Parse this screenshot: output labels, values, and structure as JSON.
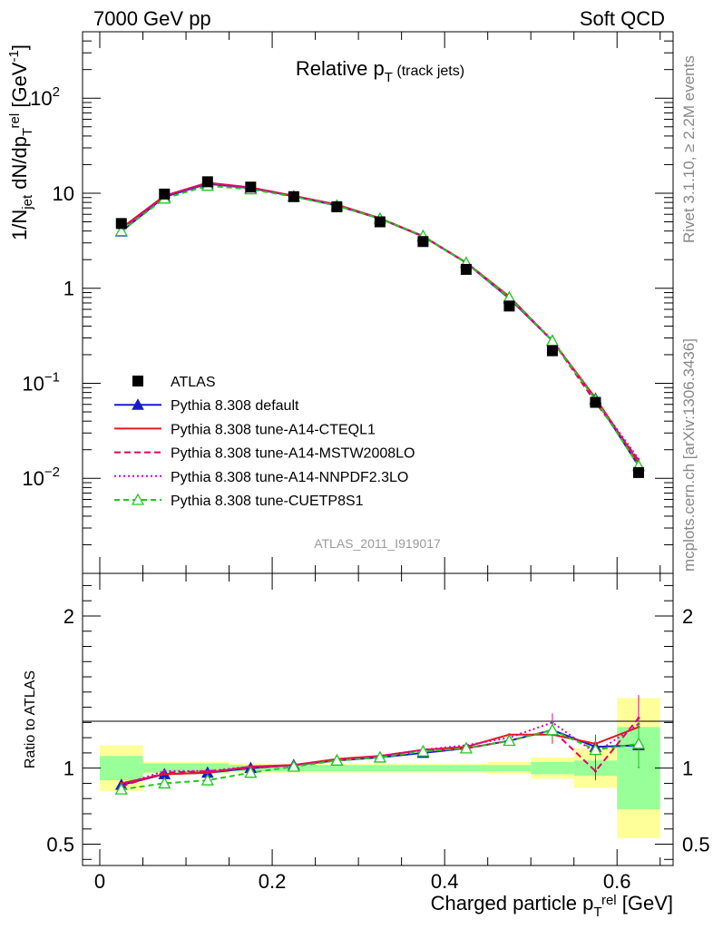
{
  "header": {
    "left": "7000 GeV pp",
    "right": "Soft QCD"
  },
  "side_labels": {
    "rivet": "Rivet 3.1.10, ≥ 2.2M events",
    "mcplots": "mcplots.cern.ch [arXiv:1306.3436]"
  },
  "chart_data": {
    "type": "line",
    "title": "Relative p_T (track jets)",
    "analysis_label": "ATLAS_2011_I919017",
    "xlabel": "Charged particle p_T^rel [GeV]",
    "ylabel_main": "1/N_jet dN/dp_T^rel [GeV^-1]",
    "ylabel_ratio": "Ratio to ATLAS",
    "x_range": [
      -0.02,
      0.665
    ],
    "y_range_main_log": [
      0.001,
      500
    ],
    "y_range_ratio": [
      0.36,
      2.28
    ],
    "x_ticks": [
      0,
      0.2,
      0.4,
      0.6
    ],
    "x_tick_labels": [
      "0",
      "0.2",
      "0.4",
      "0.6"
    ],
    "y_ticks_main": [
      {
        "value": 0.01,
        "base": "10",
        "exp": "−2"
      },
      {
        "value": 0.1,
        "base": "10",
        "exp": "−1"
      },
      {
        "value": 1,
        "base": "1",
        "exp": ""
      },
      {
        "value": 10,
        "base": "10",
        "exp": ""
      },
      {
        "value": 100,
        "base": "10",
        "exp": "2"
      }
    ],
    "y_ticks_ratio": [
      {
        "value": 0.5,
        "label": "0.5"
      },
      {
        "value": 1,
        "label": "1"
      },
      {
        "value": 2,
        "label": "2"
      }
    ],
    "x": [
      0.025,
      0.075,
      0.125,
      0.175,
      0.225,
      0.275,
      0.325,
      0.375,
      0.425,
      0.475,
      0.525,
      0.575,
      0.625
    ],
    "bin_edges": [
      0,
      0.05,
      0.1,
      0.15,
      0.2,
      0.25,
      0.3,
      0.35,
      0.4,
      0.45,
      0.5,
      0.55,
      0.6,
      0.65
    ],
    "data": {
      "name": "ATLAS",
      "values": [
        4.8,
        9.8,
        13.2,
        11.6,
        9.2,
        7.2,
        5.0,
        3.1,
        1.58,
        0.65,
        0.22,
        0.063,
        0.0115
      ],
      "color": "#000000"
    },
    "uncertainty_bands": {
      "green_half_width": [
        0.08,
        0.03,
        0.03,
        0.02,
        0.02,
        0.02,
        0.02,
        0.02,
        0.02,
        0.02,
        0.04,
        0.05,
        0.27
      ],
      "yellow_half_width": [
        0.15,
        0.04,
        0.04,
        0.03,
        0.03,
        0.03,
        0.03,
        0.03,
        0.03,
        0.04,
        0.07,
        0.13,
        0.46
      ],
      "green_color": "#99ff99",
      "yellow_color": "#ffff99"
    },
    "series": [
      {
        "name": "Pythia 8.308 default",
        "color": "#1a1acc",
        "dash": "",
        "marker": "triangle-filled",
        "values": [
          3.95,
          9.15,
          12.6,
          11.3,
          9.3,
          7.4,
          5.4,
          3.5,
          1.85,
          0.78,
          0.28,
          0.069,
          0.0135
        ],
        "ratio": [
          0.89,
          0.96,
          0.97,
          1.0,
          1.02,
          1.05,
          1.07,
          1.1,
          1.13,
          1.18,
          1.25,
          1.14,
          1.15
        ]
      },
      {
        "name": "Pythia 8.308 tune-A14-CTEQL1",
        "color": "#e41a1c",
        "dash": "",
        "marker": "none",
        "values": [
          4.3,
          9.4,
          12.9,
          11.5,
          9.4,
          7.6,
          5.45,
          3.55,
          1.87,
          0.82,
          0.28,
          0.07,
          0.0145
        ],
        "ratio": [
          0.9,
          0.96,
          0.97,
          1.01,
          1.02,
          1.06,
          1.08,
          1.12,
          1.14,
          1.22,
          1.22,
          1.16,
          1.27
        ]
      },
      {
        "name": "Pythia 8.308 tune-A14-MSTW2008LO",
        "color": "#e6005c",
        "dash": "7,4",
        "marker": "none",
        "values": [
          4.2,
          9.3,
          12.8,
          11.4,
          9.35,
          7.55,
          5.4,
          3.5,
          1.85,
          0.79,
          0.28,
          0.063,
          0.0155
        ],
        "ratio": [
          0.88,
          0.97,
          0.98,
          1.0,
          1.02,
          1.05,
          1.08,
          1.11,
          1.13,
          1.18,
          1.25,
          0.98,
          1.33
        ]
      },
      {
        "name": "Pythia 8.308 tune-A14-NNPDF2.3LO",
        "color": "#cc00cc",
        "dash": "2,3",
        "marker": "none",
        "values": [
          4.1,
          9.35,
          12.7,
          11.4,
          9.3,
          7.5,
          5.4,
          3.52,
          1.86,
          0.8,
          0.285,
          0.067,
          0.016
        ],
        "ratio": [
          0.89,
          0.98,
          0.98,
          1.01,
          1.02,
          1.05,
          1.08,
          1.12,
          1.15,
          1.2,
          1.3,
          1.1,
          1.29
        ]
      },
      {
        "name": "Pythia 8.308 tune-CUETP8S1",
        "color": "#1ec81e",
        "dash": "6,4",
        "marker": "triangle-open",
        "values": [
          4.0,
          8.8,
          12.0,
          11.0,
          9.2,
          7.4,
          5.4,
          3.55,
          1.85,
          0.8,
          0.28,
          0.067,
          0.0135
        ],
        "ratio": [
          0.86,
          0.9,
          0.92,
          0.97,
          1.01,
          1.05,
          1.07,
          1.11,
          1.13,
          1.18,
          1.25,
          1.12,
          1.16
        ]
      }
    ]
  }
}
